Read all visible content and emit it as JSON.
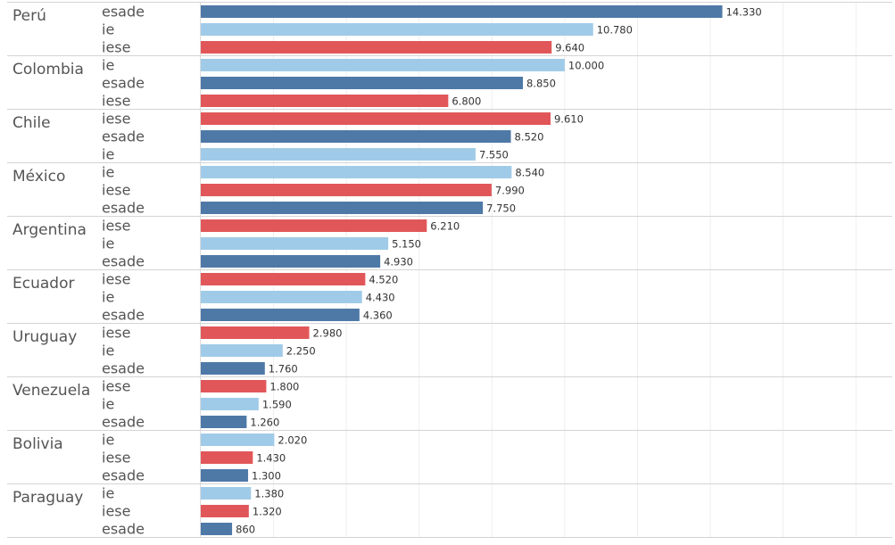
{
  "chart_data": {
    "type": "bar",
    "orientation": "horizontal",
    "grouped": true,
    "gridlines": "vertical",
    "xlim": [
      0,
      19000
    ],
    "colors": {
      "esade": "#4e79a7",
      "ie": "#a0cbe8",
      "iese": "#e15759"
    },
    "groups": [
      {
        "country": "Perú",
        "bars": [
          {
            "school": "esade",
            "value": 14330,
            "label": "14.330"
          },
          {
            "school": "ie",
            "value": 10780,
            "label": "10.780"
          },
          {
            "school": "iese",
            "value": 9640,
            "label": "9.640"
          }
        ]
      },
      {
        "country": "Colombia",
        "bars": [
          {
            "school": "ie",
            "value": 10000,
            "label": "10.000"
          },
          {
            "school": "esade",
            "value": 8850,
            "label": "8.850"
          },
          {
            "school": "iese",
            "value": 6800,
            "label": "6.800"
          }
        ]
      },
      {
        "country": "Chile",
        "bars": [
          {
            "school": "iese",
            "value": 9610,
            "label": "9.610"
          },
          {
            "school": "esade",
            "value": 8520,
            "label": "8.520"
          },
          {
            "school": "ie",
            "value": 7550,
            "label": "7.550"
          }
        ]
      },
      {
        "country": "México",
        "bars": [
          {
            "school": "ie",
            "value": 8540,
            "label": "8.540"
          },
          {
            "school": "iese",
            "value": 7990,
            "label": "7.990"
          },
          {
            "school": "esade",
            "value": 7750,
            "label": "7.750"
          }
        ]
      },
      {
        "country": "Argentina",
        "bars": [
          {
            "school": "iese",
            "value": 6210,
            "label": "6.210"
          },
          {
            "school": "ie",
            "value": 5150,
            "label": "5.150"
          },
          {
            "school": "esade",
            "value": 4930,
            "label": "4.930"
          }
        ]
      },
      {
        "country": "Ecuador",
        "bars": [
          {
            "school": "iese",
            "value": 4520,
            "label": "4.520"
          },
          {
            "school": "ie",
            "value": 4430,
            "label": "4.430"
          },
          {
            "school": "esade",
            "value": 4360,
            "label": "4.360"
          }
        ]
      },
      {
        "country": "Uruguay",
        "bars": [
          {
            "school": "iese",
            "value": 2980,
            "label": "2.980"
          },
          {
            "school": "ie",
            "value": 2250,
            "label": "2.250"
          },
          {
            "school": "esade",
            "value": 1760,
            "label": "1.760"
          }
        ]
      },
      {
        "country": "Venezuela",
        "bars": [
          {
            "school": "iese",
            "value": 1800,
            "label": "1.800"
          },
          {
            "school": "ie",
            "value": 1590,
            "label": "1.590"
          },
          {
            "school": "esade",
            "value": 1260,
            "label": "1.260"
          }
        ]
      },
      {
        "country": "Bolivia",
        "bars": [
          {
            "school": "ie",
            "value": 2020,
            "label": "2.020"
          },
          {
            "school": "iese",
            "value": 1430,
            "label": "1.430"
          },
          {
            "school": "esade",
            "value": 1300,
            "label": "1.300"
          }
        ]
      },
      {
        "country": "Paraguay",
        "bars": [
          {
            "school": "ie",
            "value": 1380,
            "label": "1.380"
          },
          {
            "school": "iese",
            "value": 1320,
            "label": "1.320"
          },
          {
            "school": "esade",
            "value": 860,
            "label": "860"
          }
        ]
      }
    ]
  }
}
